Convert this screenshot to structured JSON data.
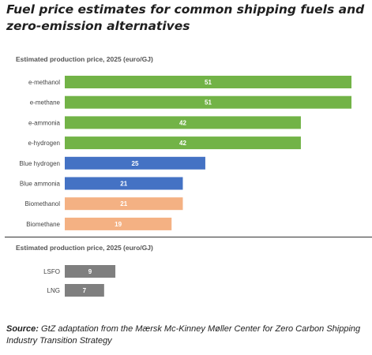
{
  "title": "Fuel price estimates for common shipping fuels and zero-emission alternatives",
  "source": {
    "label": "Source:",
    "text": "GtZ adaptation from the Mærsk Mc-Kinney Møller Center for Zero Carbon Shipping Industry Transition Strategy"
  },
  "chart_data": [
    {
      "type": "bar",
      "orientation": "horizontal",
      "title": "Estimated production price, 2025 (euro/GJ)",
      "categories": [
        "e-methanol",
        "e-methane",
        "e-ammonia",
        "e-hydrogen",
        "Blue hydrogen",
        "Blue ammonia",
        "Biomethanol",
        "Biomethane"
      ],
      "values": [
        51,
        51,
        42,
        42,
        25,
        21,
        21,
        19
      ],
      "colors": [
        "#72b347",
        "#72b347",
        "#72b347",
        "#72b347",
        "#4472c4",
        "#4472c4",
        "#f4b183",
        "#f4b183"
      ],
      "xlim": [
        0,
        51
      ],
      "grid": false
    },
    {
      "type": "bar",
      "orientation": "horizontal",
      "title": "Estimated production price, 2025 (euro/GJ)",
      "categories": [
        "LSFO",
        "LNG"
      ],
      "values": [
        9,
        7
      ],
      "colors": [
        "#7f7f7f",
        "#7f7f7f"
      ],
      "xlim": [
        0,
        51
      ],
      "grid": false
    }
  ]
}
